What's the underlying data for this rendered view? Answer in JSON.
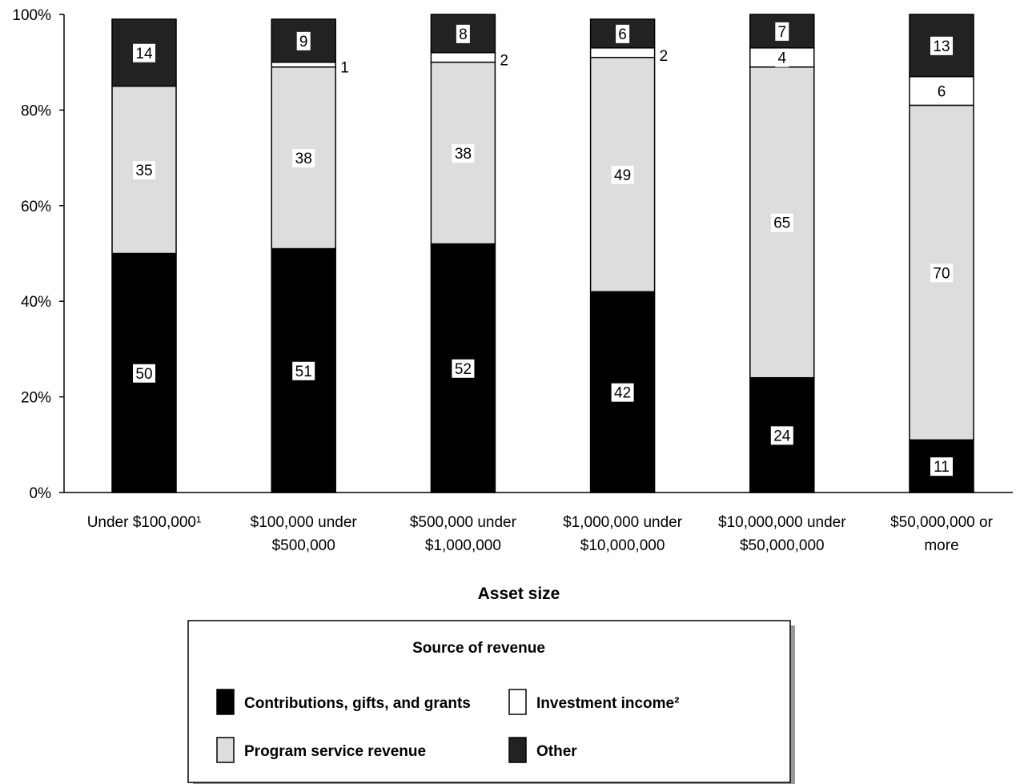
{
  "chart_data": {
    "type": "bar",
    "stacked": true,
    "percent_scale": true,
    "xlabel": "Asset size",
    "ylabel": "",
    "ylim": [
      0,
      100
    ],
    "y_ticks": [
      "0%",
      "20%",
      "40%",
      "60%",
      "80%",
      "100%"
    ],
    "categories": [
      [
        "Under $100,000¹"
      ],
      [
        "$100,000 under",
        "$500,000"
      ],
      [
        "$500,000 under",
        "$1,000,000"
      ],
      [
        "$1,000,000 under",
        "$10,000,000"
      ],
      [
        "$10,000,000 under",
        "$50,000,000"
      ],
      [
        "$50,000,000 or",
        "more"
      ]
    ],
    "series": [
      {
        "name": "Contributions, gifts, and grants",
        "color": "#000000",
        "values": [
          50,
          51,
          52,
          42,
          24,
          11
        ]
      },
      {
        "name": "Program service revenue",
        "color": "#dddddd",
        "values": [
          35,
          38,
          38,
          49,
          65,
          70
        ]
      },
      {
        "name": "Investment income²",
        "color": "#ffffff",
        "values": [
          null,
          1,
          2,
          2,
          4,
          6
        ]
      },
      {
        "name": "Other",
        "color": "#222222",
        "values": [
          14,
          9,
          8,
          6,
          7,
          13
        ]
      }
    ],
    "legend": {
      "title": "Source of revenue",
      "placement": "bottom-center",
      "entries": [
        {
          "name": "Contributions, gifts, and grants",
          "color": "#000000"
        },
        {
          "name": "Investment income²",
          "color": "#ffffff"
        },
        {
          "name": "Program service revenue",
          "color": "#dddddd"
        },
        {
          "name": "Other",
          "color": "#222222"
        }
      ]
    },
    "grid": false
  }
}
